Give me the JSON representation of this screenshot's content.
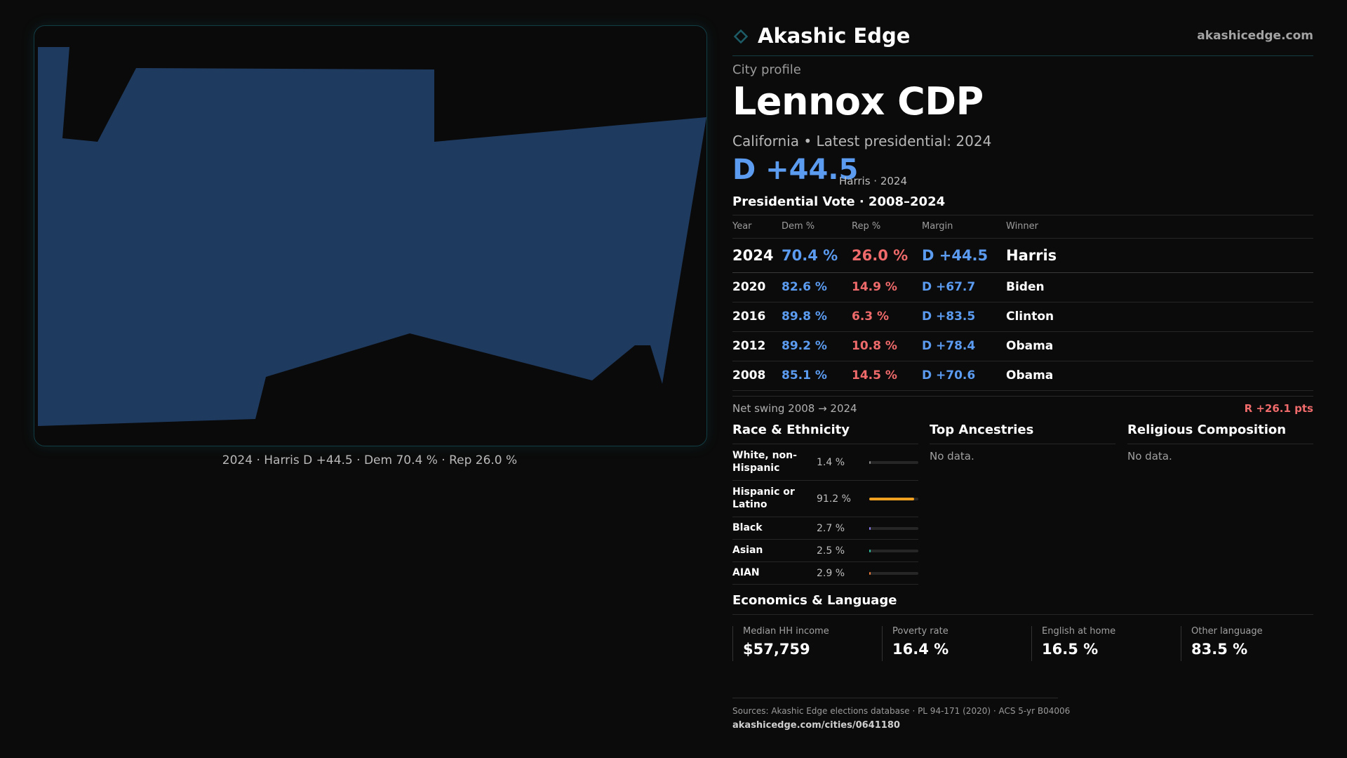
{
  "brand": {
    "name": "Akashic Edge",
    "url": "akashicedge.com",
    "accent": "#1d5c66"
  },
  "map": {
    "caption": "2024 · Harris D +44.5 · Dem 70.4 % · Rep 26.0 %",
    "fill_color": "#1f3a5f"
  },
  "profile": {
    "eyebrow": "City profile",
    "title": "Lennox CDP",
    "subtitle": "California • Latest presidential: 2024",
    "headline_margin": "D +44.5",
    "headline_note": "Harris · 2024"
  },
  "votes": {
    "title": "Presidential Vote · 2008–2024",
    "headers": {
      "year": "Year",
      "dem": "Dem %",
      "rep": "Rep %",
      "margin": "Margin",
      "winner": "Winner"
    },
    "rows": [
      {
        "year": "2024",
        "dem": "70.4 %",
        "rep": "26.0 %",
        "margin": "D +44.5",
        "winner": "Harris"
      },
      {
        "year": "2020",
        "dem": "82.6 %",
        "rep": "14.9 %",
        "margin": "D +67.7",
        "winner": "Biden"
      },
      {
        "year": "2016",
        "dem": "89.8 %",
        "rep": "6.3 %",
        "margin": "D +83.5",
        "winner": "Clinton"
      },
      {
        "year": "2012",
        "dem": "89.2 %",
        "rep": "10.8 %",
        "margin": "D +78.4",
        "winner": "Obama"
      },
      {
        "year": "2008",
        "dem": "85.1 %",
        "rep": "14.5 %",
        "margin": "D +70.6",
        "winner": "Obama"
      }
    ],
    "swing_label": "Net swing 2008 → 2024",
    "swing_value": "R +26.1 pts"
  },
  "race": {
    "title": "Race & Ethnicity",
    "rows": [
      {
        "label": "White, non-Hispanic",
        "value": "1.4 %",
        "share": 0.014,
        "color": "#8a8a8a"
      },
      {
        "label": "Hispanic or Latino",
        "value": "91.2 %",
        "share": 0.912,
        "color": "#f0a020"
      },
      {
        "label": "Black",
        "value": "2.7 %",
        "share": 0.027,
        "color": "#8a7cf0"
      },
      {
        "label": "Asian",
        "value": "2.5 %",
        "share": 0.025,
        "color": "#2fc0a0"
      },
      {
        "label": "AIAN",
        "value": "2.9 %",
        "share": 0.029,
        "color": "#f07a3a"
      }
    ]
  },
  "ancestries": {
    "title": "Top Ancestries",
    "empty": "No data."
  },
  "religion": {
    "title": "Religious Composition",
    "empty": "No data."
  },
  "economics": {
    "title": "Economics & Language",
    "stats": [
      {
        "label": "Median HH income",
        "value": "$57,759"
      },
      {
        "label": "Poverty rate",
        "value": "16.4 %"
      },
      {
        "label": "English at home",
        "value": "16.5 %"
      },
      {
        "label": "Other language",
        "value": "83.5 %"
      }
    ]
  },
  "sources": {
    "text": "Sources: Akashic Edge elections database · PL 94-171 (2020) · ACS 5-yr B04006",
    "url": "akashicedge.com/cities/0641180"
  }
}
